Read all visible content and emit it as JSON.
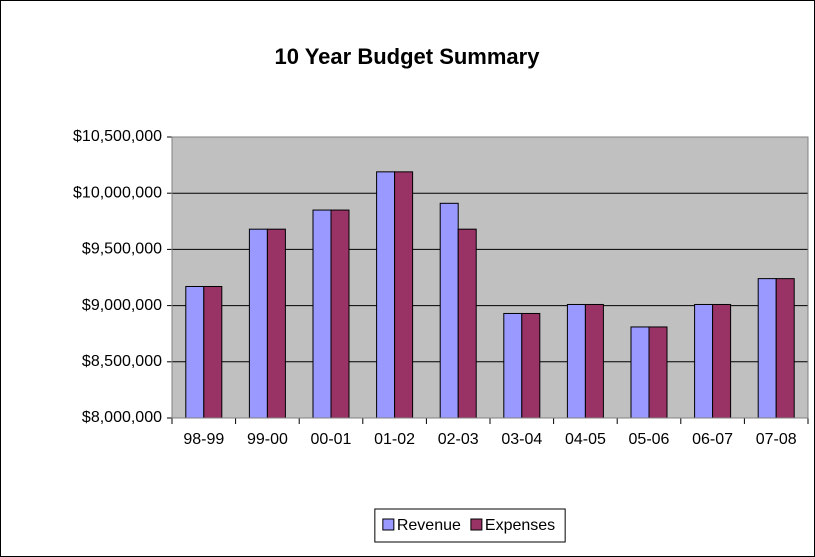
{
  "chart_data": {
    "type": "bar",
    "title": "10 Year Budget Summary",
    "categories": [
      "98-99",
      "99-00",
      "00-01",
      "01-02",
      "02-03",
      "03-04",
      "04-05",
      "05-06",
      "06-07",
      "07-08"
    ],
    "series": [
      {
        "name": "Revenue",
        "color": "#9999ff",
        "values": [
          9170000,
          9680000,
          9850000,
          10190000,
          9910000,
          8930000,
          9010000,
          8810000,
          9010000,
          9240000
        ]
      },
      {
        "name": "Expenses",
        "color": "#993366",
        "values": [
          9170000,
          9680000,
          9850000,
          10190000,
          9680000,
          8930000,
          9010000,
          8810000,
          9010000,
          9240000
        ]
      }
    ],
    "ylim": [
      8000000,
      10500000
    ],
    "yticks": [
      {
        "value": 8000000,
        "label": "$8,000,000"
      },
      {
        "value": 8500000,
        "label": "$8,500,000"
      },
      {
        "value": 9000000,
        "label": "$9,000,000"
      },
      {
        "value": 9500000,
        "label": "$9,500,000"
      },
      {
        "value": 10000000,
        "label": "$10,000,000"
      },
      {
        "value": 10500000,
        "label": "$10,500,000"
      }
    ],
    "grid": true,
    "legend": "bottom"
  }
}
